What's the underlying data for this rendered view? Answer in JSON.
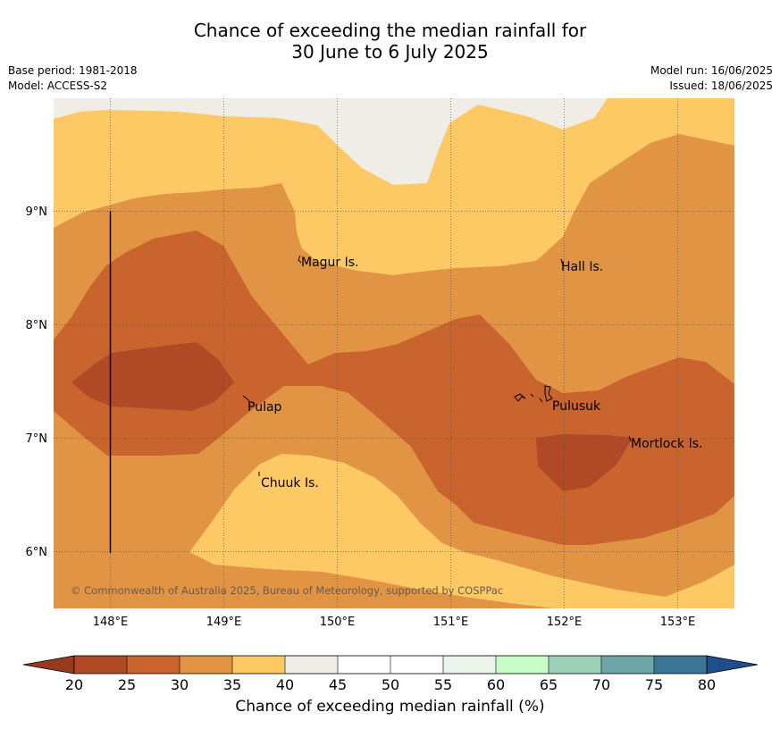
{
  "title_line1": "Chance of exceeding the median rainfall for",
  "title_line2": "30 June to 6 July 2025",
  "meta": {
    "base_period": "Base period: 1981-2018",
    "model": "Model: ACCESS-S2",
    "model_run": "Model run: 16/06/2025",
    "issued": "Issued: 18/06/2025"
  },
  "map": {
    "lon_ticks": [
      "148°E",
      "149°E",
      "150°E",
      "151°E",
      "152°E",
      "153°E"
    ],
    "lat_ticks": [
      "9°N",
      "8°N",
      "7°N",
      "6°N"
    ],
    "places": [
      {
        "name": "Magur Is."
      },
      {
        "name": "Hall Is."
      },
      {
        "name": "Pulap"
      },
      {
        "name": "Chuuk Is."
      },
      {
        "name": "Mortlock Is."
      },
      {
        "name": "Pulusuk"
      }
    ],
    "copyright": "© Commonwealth of Australia 2025, Bureau of Meteorology, supported by COSPPac"
  },
  "colorbar": {
    "title": "Chance of exceeding median rainfall (%)",
    "ticks": [
      "20",
      "25",
      "30",
      "35",
      "40",
      "45",
      "50",
      "55",
      "60",
      "65",
      "70",
      "75",
      "80"
    ],
    "colors": [
      "#b04a26",
      "#c9642f",
      "#e09444",
      "#fdc964",
      "#f0ece6",
      "#ffffff",
      "#ffffff",
      "#ebf4ea",
      "#c9fcc7",
      "#9dd0b8",
      "#6ea5a6",
      "#3d7595"
    ],
    "under_color": "#9a3a1c",
    "over_color": "#1f4e8c"
  }
}
